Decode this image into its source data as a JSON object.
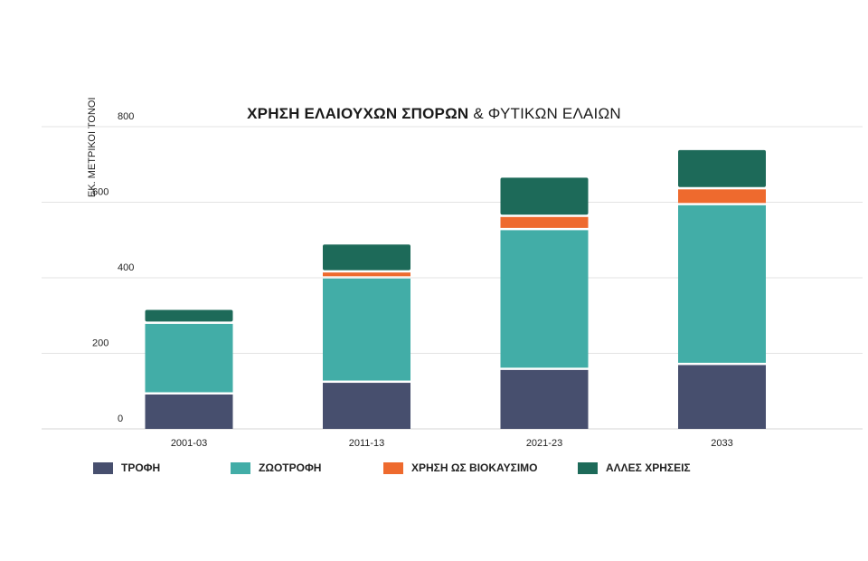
{
  "chart_data": {
    "type": "bar",
    "stacked": true,
    "title_bold": "ΧΡΗΣΗ ΕΛΑΙΟΥΧΩΝ ΣΠΟΡΩΝ",
    "title_rest": "& ΦΥΤΙΚΩΝ ΕΛΑΙΩΝ",
    "ylabel": "ΕΚ. ΜΕΤΡΙΚΟΙ ΤΟΝΟΙ",
    "xlabel": "",
    "ylim": [
      0,
      800
    ],
    "yticks": [
      0,
      200,
      400,
      600,
      800
    ],
    "grid": true,
    "legend_position": "bottom",
    "categories": [
      "2001-03",
      "2011-13",
      "2021-23",
      "2033"
    ],
    "series": [
      {
        "name": "ΤΡΟΦΗ",
        "color": "#474f6e",
        "values": [
          97,
          128,
          162,
          175
        ]
      },
      {
        "name": "ΖΩΟΤΡΟΦΗ",
        "color": "#42ada7",
        "values": [
          187,
          276,
          370,
          423
        ]
      },
      {
        "name": "ΧΡΗΣΗ ΩΣ ΒΙΟΚΑΥΣΙΜΟ",
        "color": "#ee6a2e",
        "values": [
          0,
          16,
          35,
          42
        ]
      },
      {
        "name": "ΑΛΛΕΣ ΧΡΗΣΕΙΣ",
        "color": "#1d6a59",
        "values": [
          31,
          68,
          98,
          98
        ]
      }
    ]
  }
}
